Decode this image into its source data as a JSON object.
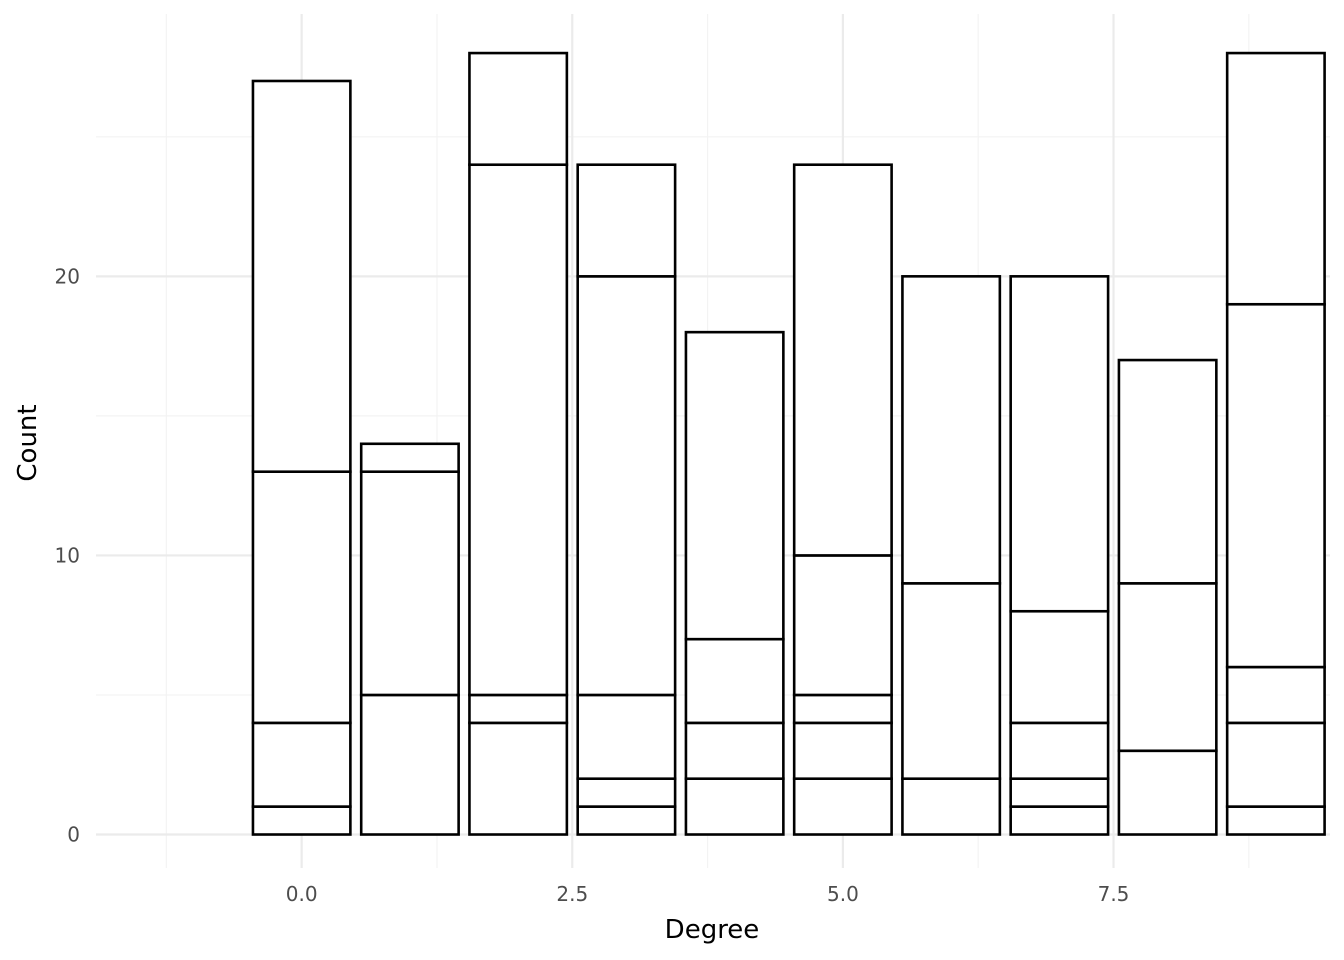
{
  "chart_data": {
    "type": "bar",
    "stacked": true,
    "xlabel": "Degree",
    "ylabel": "Count",
    "x": [
      0,
      1,
      2,
      3,
      4,
      5,
      6,
      7,
      8,
      9
    ],
    "xlim": [
      -1.9,
      9.5
    ],
    "ylim": [
      -1.2,
      29.4
    ],
    "x_ticks": [
      0.0,
      2.5,
      5.0,
      7.5
    ],
    "x_tick_labels": [
      "0.0",
      "2.5",
      "5.0",
      "7.5"
    ],
    "y_ticks": [
      0,
      10,
      20
    ],
    "y_tick_labels": [
      "0",
      "10",
      "20"
    ],
    "bar_width": 0.9,
    "grid": true,
    "legend": "none",
    "fill_color": "#ffffff",
    "outline_color": "#000000",
    "cumulative_boundaries": [
      [
        1,
        4,
        13,
        27
      ],
      [
        5,
        13,
        14
      ],
      [
        4,
        5,
        24,
        28
      ],
      [
        1,
        2,
        5,
        20,
        24
      ],
      [
        2,
        4,
        7,
        18
      ],
      [
        2,
        4,
        5,
        10,
        24
      ],
      [
        2,
        9,
        20
      ],
      [
        1,
        2,
        4,
        8,
        20
      ],
      [
        3,
        9,
        17
      ],
      [
        1,
        4,
        6,
        19,
        28
      ]
    ],
    "totals": [
      27,
      14,
      28,
      24,
      18,
      24,
      20,
      20,
      17,
      28
    ]
  }
}
